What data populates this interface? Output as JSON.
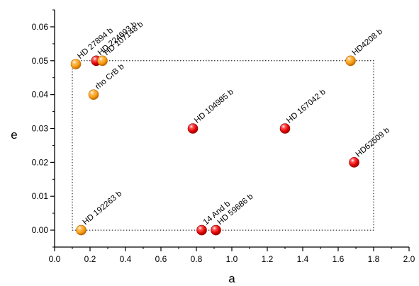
{
  "chart_data": {
    "type": "scatter",
    "xlabel": "a",
    "ylabel": "e",
    "xlim": [
      0.0,
      2.0
    ],
    "ylim": [
      -0.005,
      0.065
    ],
    "x_ticks": [
      "0.0",
      "0.2",
      "0.4",
      "0.6",
      "0.8",
      "1.0",
      "1.2",
      "1.4",
      "1.6",
      "1.8",
      "2.0"
    ],
    "y_ticks": [
      "0.00",
      "0.01",
      "0.02",
      "0.03",
      "0.04",
      "0.05",
      "0.06"
    ],
    "x_tick_values": [
      0.0,
      0.2,
      0.4,
      0.6,
      0.8,
      1.0,
      1.2,
      1.4,
      1.6,
      1.8,
      2.0
    ],
    "y_tick_values": [
      0.0,
      0.01,
      0.02,
      0.03,
      0.04,
      0.05,
      0.06
    ],
    "grid": false,
    "region": {
      "x": [
        0.1,
        1.8
      ],
      "y": [
        0.0,
        0.05
      ],
      "style": "dotted"
    },
    "colors": {
      "red": "#e00000",
      "orange": "#f59a10"
    },
    "points": [
      {
        "label": "HD 27894 b",
        "x": 0.12,
        "y": 0.049,
        "color": "orange"
      },
      {
        "label": "HD 224693 b",
        "x": 0.235,
        "y": 0.05,
        "color": "red"
      },
      {
        "label": "HD 107148 b",
        "x": 0.27,
        "y": 0.05,
        "color": "orange"
      },
      {
        "label": "rho CrB b",
        "x": 0.22,
        "y": 0.04,
        "color": "orange"
      },
      {
        "label": "HD4208 b",
        "x": 1.67,
        "y": 0.05,
        "color": "orange"
      },
      {
        "label": "HD 104985 b",
        "x": 0.78,
        "y": 0.03,
        "color": "red"
      },
      {
        "label": "HD 167042 b",
        "x": 1.3,
        "y": 0.03,
        "color": "red"
      },
      {
        "label": "HD62509 b",
        "x": 1.69,
        "y": 0.02,
        "color": "red"
      },
      {
        "label": "HD 192263 b",
        "x": 0.15,
        "y": 0.0,
        "color": "orange"
      },
      {
        "label": "14 And b",
        "x": 0.83,
        "y": 0.0,
        "color": "red"
      },
      {
        "label": "HD 59686 b",
        "x": 0.91,
        "y": 0.0,
        "color": "red"
      }
    ]
  }
}
